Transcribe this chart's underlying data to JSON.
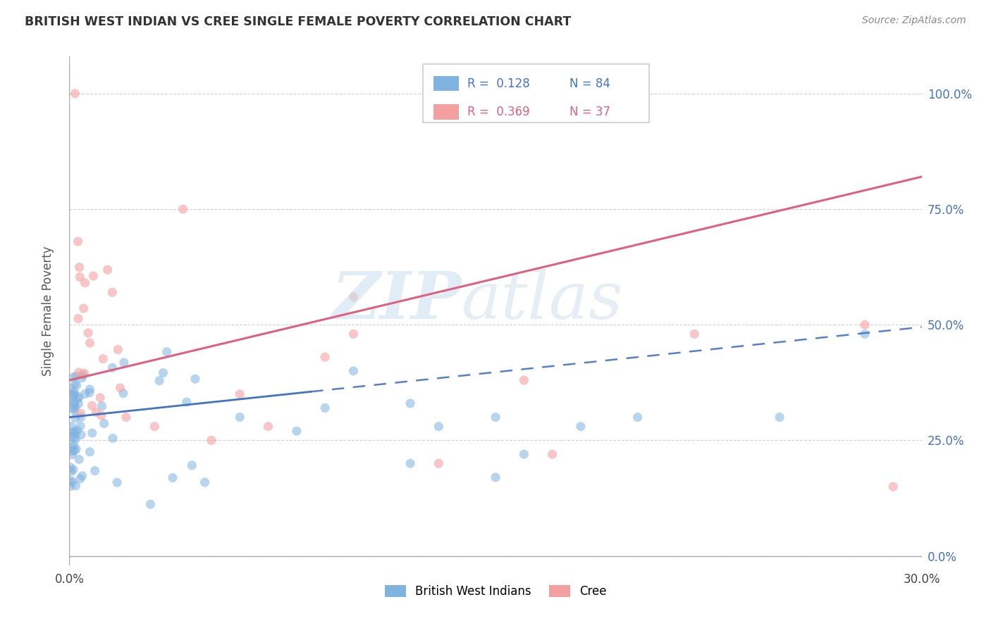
{
  "title": "BRITISH WEST INDIAN VS CREE SINGLE FEMALE POVERTY CORRELATION CHART",
  "source": "Source: ZipAtlas.com",
  "ylabel": "Single Female Poverty",
  "xlim": [
    0.0,
    0.3
  ],
  "ylim": [
    -0.02,
    1.08
  ],
  "ytick_vals": [
    0.0,
    0.25,
    0.5,
    0.75,
    1.0
  ],
  "ytick_labels_right": [
    "0.0%",
    "25.0%",
    "50.0%",
    "75.0%",
    "100.0%"
  ],
  "xtick_vals": [
    0.0,
    0.3
  ],
  "xtick_labels": [
    "0.0%",
    "30.0%"
  ],
  "legend_r1": "R =  0.128",
  "legend_n1": "N = 84",
  "legend_r2": "R =  0.369",
  "legend_n2": "N = 37",
  "color_blue": "#7fb3e0",
  "color_pink": "#f4a0a0",
  "color_line_blue": "#4472c4",
  "color_line_pink": "#e06080",
  "bwi_line": [
    0.0,
    0.275,
    0.3,
    0.495
  ],
  "cree_line": [
    0.0,
    0.38,
    0.3,
    0.82
  ],
  "watermark_zip": "ZIP",
  "watermark_atlas": "atlas"
}
